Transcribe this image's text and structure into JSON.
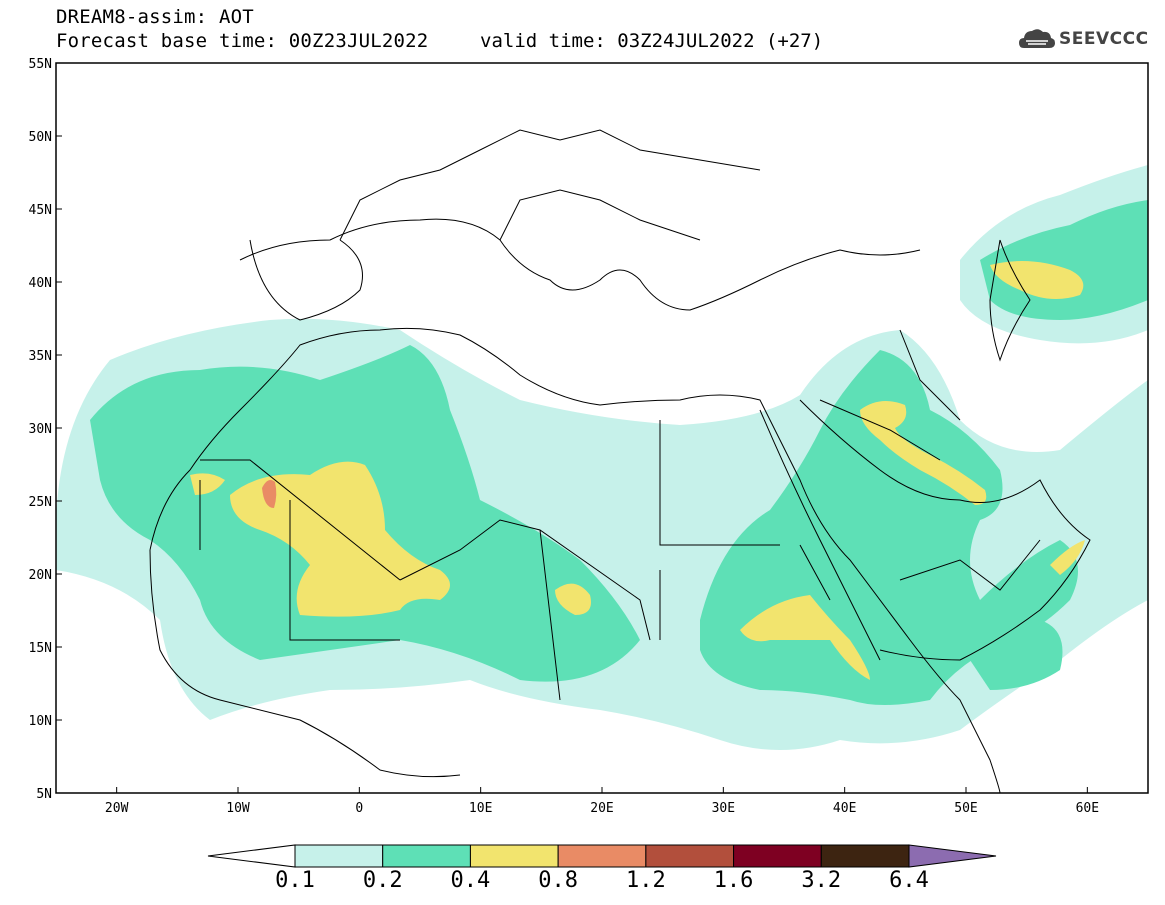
{
  "header": {
    "model_line": "DREAM8-assim: AOT",
    "base_time_line": "Forecast base time: 00Z23JUL2022",
    "valid_time_line": "valid time: 03Z24JUL2022 (+27)"
  },
  "logo": {
    "text": "SEEVCCC",
    "icon": "cloud-logo-icon"
  },
  "map": {
    "lat_labels": [
      "55N",
      "50N",
      "45N",
      "40N",
      "35N",
      "30N",
      "25N",
      "20N",
      "15N",
      "10N",
      "5N"
    ],
    "lon_labels": [
      "20W",
      "10W",
      "0",
      "10E",
      "20E",
      "30E",
      "40E",
      "50E",
      "60E"
    ],
    "lat_range": [
      5,
      55
    ],
    "lon_range": [
      -25,
      65
    ]
  },
  "colorbar": {
    "labels": [
      "0.1",
      "0.2",
      "0.4",
      "0.8",
      "1.2",
      "1.6",
      "3.2",
      "6.4"
    ],
    "colors": [
      "#ffffff",
      "#c6f1ea",
      "#5ee0b6",
      "#f2e46e",
      "#e98b65",
      "#b24f3c",
      "#7e0022",
      "#3d2411",
      "#8c6cb0"
    ]
  }
}
